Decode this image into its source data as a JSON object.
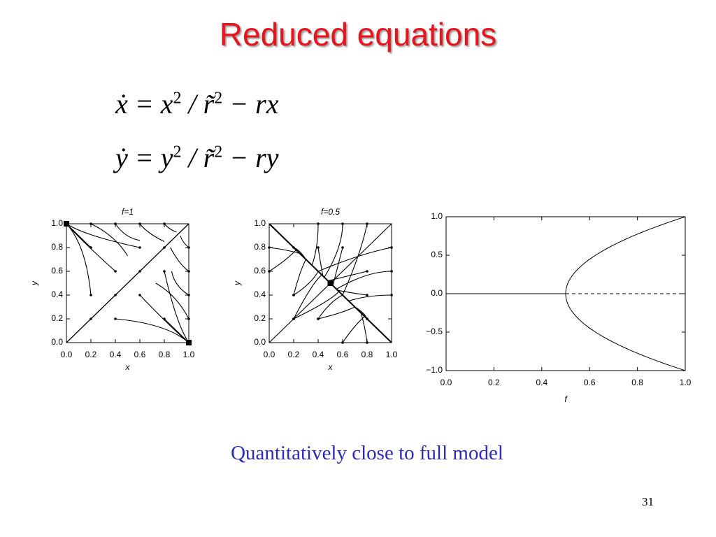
{
  "title": "Reduced equations",
  "equations": [
    [
      "ẋ = x",
      "2",
      " / r̃",
      "2",
      " − rx"
    ],
    [
      "ẏ = y",
      "2",
      " / r̃",
      "2",
      " − ry"
    ]
  ],
  "figures": [
    {
      "title": "f=1",
      "xlabel": "x",
      "ylabel": "y",
      "xlim": [
        0,
        1
      ],
      "ylim": [
        0,
        1
      ],
      "xticks": [
        {
          "value": 0,
          "label": "0.0"
        },
        {
          "value": 0.2,
          "label": "0.2"
        },
        {
          "value": 0.4,
          "label": "0.4"
        },
        {
          "value": 0.6,
          "label": "0.6"
        },
        {
          "value": 0.8,
          "label": "0.8"
        },
        {
          "value": 1,
          "label": "1.0"
        }
      ],
      "yticks": [
        {
          "value": 0,
          "label": "0.0"
        },
        {
          "value": 0.2,
          "label": "0.2"
        },
        {
          "value": 0.4,
          "label": "0.4"
        },
        {
          "value": 0.6,
          "label": "0.6"
        },
        {
          "value": 0.8,
          "label": "0.8"
        },
        {
          "value": 1,
          "label": "1.0"
        }
      ]
    },
    {
      "title": "f=0.5",
      "xlabel": "x",
      "ylabel": "y",
      "xlim": [
        0,
        1
      ],
      "ylim": [
        0,
        1
      ],
      "xticks": [
        {
          "value": 0,
          "label": "0.0"
        },
        {
          "value": 0.2,
          "label": "0.2"
        },
        {
          "value": 0.4,
          "label": "0.4"
        },
        {
          "value": 0.6,
          "label": "0.6"
        },
        {
          "value": 0.8,
          "label": "0.8"
        },
        {
          "value": 1,
          "label": "1.0"
        }
      ],
      "yticks": [
        {
          "value": 0,
          "label": "0.0"
        },
        {
          "value": 0.2,
          "label": "0.2"
        },
        {
          "value": 0.4,
          "label": "0.4"
        },
        {
          "value": 0.6,
          "label": "0.6"
        },
        {
          "value": 0.8,
          "label": "0.8"
        },
        {
          "value": 1,
          "label": "1.0"
        }
      ]
    },
    {
      "xlabel": "f",
      "xlim": [
        0,
        1
      ],
      "ylim": [
        -1,
        1
      ],
      "xticks": [
        {
          "value": 0,
          "label": "0.0"
        },
        {
          "value": 0.2,
          "label": "0.2"
        },
        {
          "value": 0.4,
          "label": "0.4"
        },
        {
          "value": 0.6,
          "label": "0.6"
        },
        {
          "value": 0.8,
          "label": "0.8"
        },
        {
          "value": 1,
          "label": "1.0"
        }
      ],
      "yticks": [
        {
          "value": 1,
          "label": "1.0"
        },
        {
          "value": 0.5,
          "label": "0.5"
        },
        {
          "value": 0,
          "label": "0.0"
        },
        {
          "value": -0.5,
          "label": "−0.5"
        },
        {
          "value": -1,
          "label": "−1.0"
        }
      ]
    }
  ],
  "caption": "Quantitatively close to full model",
  "page_number": "31"
}
